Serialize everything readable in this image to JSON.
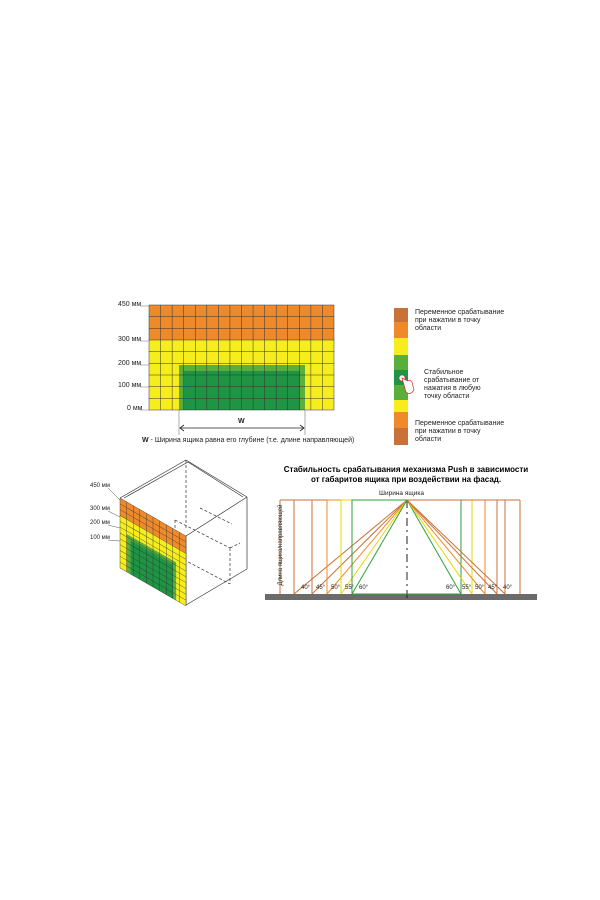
{
  "colors": {
    "brown": "#c8723a",
    "orange": "#ef8a2a",
    "yellow": "#f5ee1c",
    "green": "#5aae3c",
    "dark_green": "#1f9444",
    "grid_line": "#333333",
    "ground": "#6b6b6b"
  },
  "front_grid": {
    "levels": [
      "450 мм",
      "300 мм",
      "200 мм",
      "100 мм",
      "0 мм"
    ],
    "width_symbol": "W",
    "caption_symbol": "W",
    "caption": " - Ширина ящика равна его глубине  (т.е. длине направляющей)"
  },
  "legend": {
    "top": "Переменное срабатывание при нажатии в точку области",
    "middle": "Стабильное срабатывание от нажатия в любую точку области",
    "bottom": "Переменное срабатывание при нажатии в точку области",
    "hand_icon": "pointing-hand-icon"
  },
  "cube": {
    "levels": [
      "450 мм",
      "300 мм",
      "200 мм",
      "100 мм"
    ]
  },
  "angle_diagram": {
    "title_line1": "Стабильность срабатывания механизма Push в зависимости",
    "title_line2": "от габаритов ящика при воздействии на фасад.",
    "top_label": "Ширина ящика",
    "side_label": "Длина ящика/направляющей",
    "left_angles": [
      "40°",
      "45°",
      "50°",
      "55°",
      "60°"
    ],
    "right_angles": [
      "60°",
      "55°",
      "50°",
      "45°",
      "40°"
    ]
  }
}
